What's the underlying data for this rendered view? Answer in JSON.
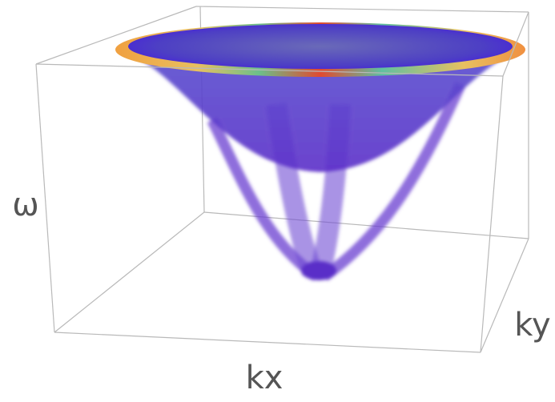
{
  "chart_data": {
    "type": "surface3d",
    "xlabel": "kx",
    "ylabel": "ky",
    "zlabel": "ω"
  }
}
